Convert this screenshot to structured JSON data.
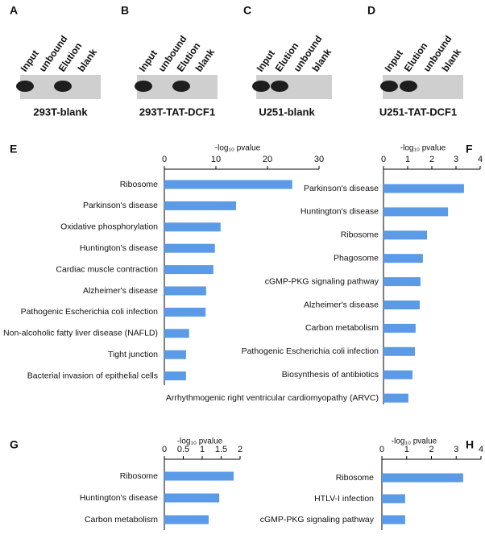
{
  "blots": [
    {
      "panel": "A",
      "lanes": [
        "Input",
        "unbound",
        "Elution",
        "blank"
      ],
      "caption": "293T-blank"
    },
    {
      "panel": "B",
      "lanes": [
        "Input",
        "unbound",
        "Elution",
        "blank"
      ],
      "caption": "293T-TAT-DCF1"
    },
    {
      "panel": "C",
      "lanes": [
        "Input",
        "Elution",
        "unbound",
        "blank"
      ],
      "caption": "U251-blank"
    },
    {
      "panel": "D",
      "lanes": [
        "Input",
        "Elution",
        "unbound",
        "blank"
      ],
      "caption": "U251-TAT-DCF1"
    }
  ],
  "chart_data": [
    {
      "type": "hbar",
      "panel": "E",
      "xlabel": "-log₁₀ pvalue",
      "color": "#5a9ae6",
      "categories": [
        "Ribosome",
        "Parkinson's disease",
        "Oxidative phosphorylation",
        "Huntington's disease",
        "Cardiac muscle contraction",
        "Alzheimer's disease",
        "Pathogenic Escherichia coli infection",
        "Non-alcoholic fatty liver disease (NAFLD)",
        "Tight junction",
        "Bacterial invasion of epithelial cells"
      ],
      "values": [
        24.8,
        13.9,
        10.9,
        9.8,
        9.5,
        8.1,
        8.0,
        4.8,
        4.2,
        4.2
      ],
      "xlim": [
        0,
        30
      ],
      "xticks": [
        0,
        10,
        20,
        30
      ]
    },
    {
      "type": "hbar",
      "panel": "F",
      "xlabel": "-log₁₀ pvalue",
      "color": "#5a9ae6",
      "categories": [
        "Parkinson's disease",
        "Huntington's disease",
        "Ribosome",
        "Phagosome",
        "cGMP-PKG signaling pathway",
        "Alzheimer's disease",
        "Carbon metabolism",
        "Pathogenic Escherichia coli infection",
        "Biosynthesis of antibiotics",
        "Arrhythmogenic right ventricular cardiomyopathy (ARVC)"
      ],
      "values": [
        3.33,
        2.67,
        1.8,
        1.63,
        1.53,
        1.5,
        1.33,
        1.3,
        1.2,
        1.03
      ],
      "xlim": [
        0,
        4
      ],
      "xticks": [
        0,
        1,
        2,
        3,
        4
      ]
    },
    {
      "type": "hbar",
      "panel": "G",
      "xlabel": "-log₁₀ pvalue",
      "color": "#5a9ae6",
      "categories": [
        "Ribosome",
        "Huntington's disease",
        "Carbon metabolism"
      ],
      "values": [
        1.83,
        1.45,
        1.17
      ],
      "xlim": [
        0,
        2
      ],
      "xticks": [
        0,
        0.5,
        1,
        1.5,
        2
      ]
    },
    {
      "type": "hbar",
      "panel": "H",
      "xlabel": "-log₁₀ pvalue",
      "color": "#5a9ae6",
      "categories": [
        "Ribosome",
        "HTLV-I infection",
        "cGMP-PKG signaling pathway"
      ],
      "values": [
        3.28,
        0.94,
        0.94
      ],
      "xlim": [
        0,
        4
      ],
      "xticks": [
        0,
        1,
        2,
        3,
        4
      ]
    }
  ]
}
